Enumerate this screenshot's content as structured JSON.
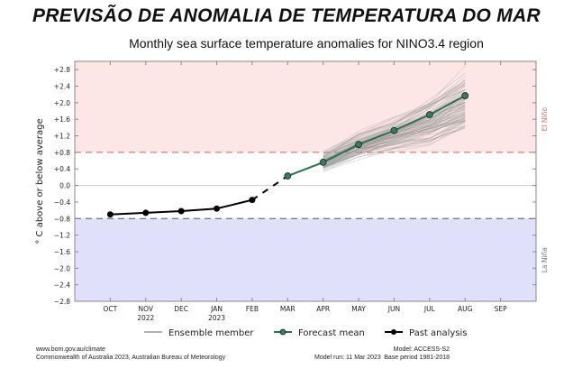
{
  "header": {
    "title": "PREVISÃO DE ANOMALIA DE TEMPERATURA DO MAR"
  },
  "chart_data": {
    "type": "line",
    "title": "Monthly sea surface temperature anomalies for NINO3.4 region",
    "ylabel": "° C above or below average",
    "xlabel": "",
    "ylim": [
      -2.8,
      3.0
    ],
    "yticks": [
      "+2.8",
      "+2.4",
      "+2.0",
      "+1.6",
      "+1.2",
      "+0.8",
      "+0.4",
      "0.0",
      "−0.4",
      "−0.8",
      "−1.2",
      "−1.6",
      "−2.0",
      "−2.4",
      "−2.8"
    ],
    "ytick_values": [
      2.8,
      2.4,
      2.0,
      1.6,
      1.2,
      0.8,
      0.4,
      0.0,
      -0.4,
      -0.8,
      -1.2,
      -1.6,
      -2.0,
      -2.4,
      -2.8
    ],
    "categories": [
      "OCT",
      "NOV",
      "DEC",
      "JAN",
      "FEB",
      "MAR",
      "APR",
      "MAY",
      "JUN",
      "JUL",
      "AUG",
      "SEP"
    ],
    "year_labels": [
      {
        "index": 1,
        "label": "2022"
      },
      {
        "index": 3,
        "label": "2023"
      }
    ],
    "thresholds": {
      "el_nino": 0.8,
      "la_nina": -0.8
    },
    "region_labels": {
      "el_nino": "El Niño",
      "la_nina": "La Niña"
    },
    "colors": {
      "el_nino_fill": "#fde6e6",
      "la_nina_fill": "#e0e0fb",
      "el_nino_line": "#d06060",
      "la_nina_line": "#505080",
      "forecast": "#2e6e4e",
      "forecast_marker": "#3d7a5c",
      "past": "#000000",
      "ensemble": "#999999"
    },
    "series": [
      {
        "name": "Past analysis",
        "x": [
          0,
          1,
          2,
          3,
          4
        ],
        "values": [
          -0.7,
          -0.66,
          -0.62,
          -0.56,
          -0.35
        ]
      },
      {
        "name": "Forecast mean",
        "x": [
          5,
          6,
          7,
          8,
          9,
          10
        ],
        "values": [
          0.23,
          0.56,
          0.99,
          1.33,
          1.71,
          2.17
        ]
      }
    ],
    "ensemble_range": {
      "x": [
        6,
        7,
        8,
        9,
        10
      ],
      "min": [
        0.3,
        0.6,
        0.8,
        0.9,
        1.1
      ],
      "max": [
        0.85,
        1.35,
        1.7,
        2.2,
        2.9
      ]
    },
    "legend": [
      "Ensemble member",
      "Forecast mean",
      "Past analysis"
    ],
    "legend_position": "bottom-center"
  },
  "footer": {
    "source_url": "www.bom.gov.au/climate",
    "copyright": "Commonwealth of Australia 2023, Australian Bureau of Meteorology",
    "model_run": "Model run: 11 Mar 2023",
    "model": "Model: ACCESS-S2",
    "base_period": "Base period 1981-2018"
  }
}
